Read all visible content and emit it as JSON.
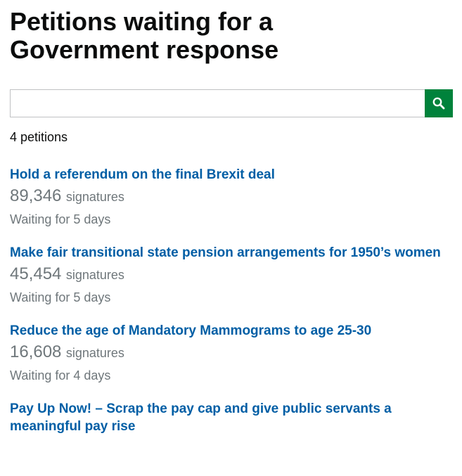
{
  "page": {
    "title": "Petitions waiting for a Government response"
  },
  "search": {
    "value": "",
    "placeholder": "",
    "button_icon": "search-icon",
    "button_color": "#00823b"
  },
  "results": {
    "count_label": "4 petitions"
  },
  "petitions": [
    {
      "title": "Hold a referendum on the final Brexit deal",
      "signature_count": "89,346",
      "signature_label": "signatures",
      "waiting": "Waiting for 5 days"
    },
    {
      "title": "Make fair transitional state pension arrangements for 1950’s women",
      "signature_count": "45,454",
      "signature_label": "signatures",
      "waiting": "Waiting for 5 days"
    },
    {
      "title": "Reduce the age of Mandatory Mammograms to age 25-30",
      "signature_count": "16,608",
      "signature_label": "signatures",
      "waiting": "Waiting for 4 days"
    },
    {
      "title": "Pay Up Now! – Scrap the pay cap and give public servants a meaningful pay rise",
      "signature_count": "",
      "signature_label": "",
      "waiting": ""
    }
  ],
  "colors": {
    "link": "#005ea5",
    "secondary_text": "#6f777b",
    "heading": "#0b0c0c"
  }
}
